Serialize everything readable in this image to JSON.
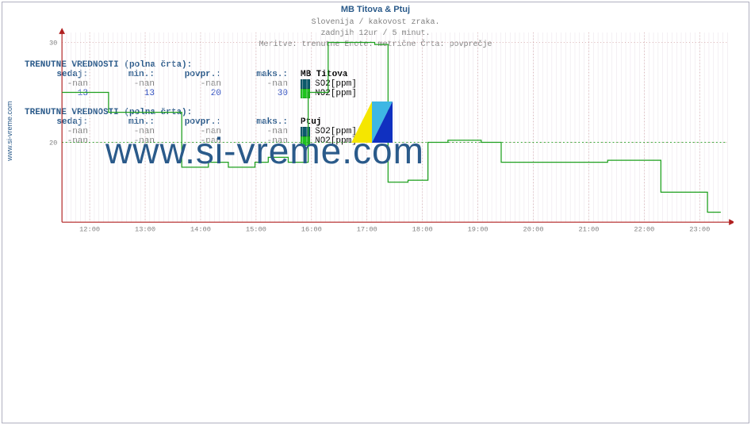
{
  "title": "MB Titova & Ptuj",
  "ylabel": "www.si-vreme.com",
  "watermark": "www.si-vreme.com",
  "chart": {
    "type": "line-step",
    "ylim": [
      12,
      31
    ],
    "yticks": [
      20,
      30
    ],
    "xlabels": [
      "12:00",
      "13:00",
      "14:00",
      "15:00",
      "16:00",
      "17:00",
      "18:00",
      "19:00",
      "20:00",
      "21:00",
      "22:00",
      "23:00"
    ],
    "grid_minor_color": "#e8e0e8",
    "grid_major_color": "#c08080",
    "axis_color": "#b02020",
    "ref_line": {
      "value": 20,
      "color": "#20a020",
      "dash": "2 3"
    },
    "series": {
      "color": "#1ea01e",
      "points": [
        [
          0.0,
          25.0
        ],
        [
          0.07,
          25.0
        ],
        [
          0.07,
          23.0
        ],
        [
          0.17,
          23.0
        ],
        [
          0.17,
          23.0
        ],
        [
          0.18,
          23.0
        ],
        [
          0.18,
          17.5
        ],
        [
          0.22,
          17.5
        ],
        [
          0.22,
          18.0
        ],
        [
          0.25,
          18.0
        ],
        [
          0.25,
          17.5
        ],
        [
          0.29,
          17.5
        ],
        [
          0.29,
          18.0
        ],
        [
          0.31,
          18.0
        ],
        [
          0.31,
          18.5
        ],
        [
          0.34,
          18.5
        ],
        [
          0.34,
          18.0
        ],
        [
          0.37,
          18.0
        ],
        [
          0.37,
          25.0
        ],
        [
          0.4,
          25.0
        ],
        [
          0.4,
          30.0
        ],
        [
          0.47,
          30.0
        ],
        [
          0.47,
          29.8
        ],
        [
          0.49,
          29.8
        ],
        [
          0.49,
          16.0
        ],
        [
          0.52,
          16.0
        ],
        [
          0.52,
          16.2
        ],
        [
          0.55,
          16.2
        ],
        [
          0.55,
          20.0
        ],
        [
          0.58,
          20.0
        ],
        [
          0.58,
          20.2
        ],
        [
          0.63,
          20.2
        ],
        [
          0.63,
          20.0
        ],
        [
          0.66,
          20.0
        ],
        [
          0.66,
          18.0
        ],
        [
          0.71,
          18.0
        ],
        [
          0.71,
          18.0
        ],
        [
          0.79,
          18.0
        ],
        [
          0.79,
          18.0
        ],
        [
          0.82,
          18.0
        ],
        [
          0.82,
          18.2
        ],
        [
          0.9,
          18.2
        ],
        [
          0.9,
          15.0
        ],
        [
          0.97,
          15.0
        ],
        [
          0.97,
          13.0
        ],
        [
          0.99,
          13.0
        ]
      ]
    },
    "footer": [
      "Slovenija / kakovost zraka.",
      "zadnjih 12ur / 5 minut.",
      "Meritve: trenutne  Enote: metrične  Črta: povprečje"
    ]
  },
  "legends": [
    {
      "header": "TRENUTNE VREDNOSTI (polna črta):",
      "columns": [
        "sedaj:",
        "min.:",
        "povpr.:",
        "maks.:"
      ],
      "station": "MB Titova",
      "rows": [
        {
          "values": [
            "-nan",
            "-nan",
            "-nan",
            "-nan"
          ],
          "swatch": "#0b5a6b",
          "label": "SO2[ppm]",
          "hilite": false
        },
        {
          "values": [
            "13",
            "13",
            "20",
            "30"
          ],
          "swatch": "#1ec41e",
          "label": "NO2[ppm]",
          "hilite": true
        }
      ]
    },
    {
      "header": "TRENUTNE VREDNOSTI (polna črta):",
      "columns": [
        "sedaj:",
        "min.:",
        "povpr.:",
        "maks.:"
      ],
      "station": "Ptuj",
      "rows": [
        {
          "values": [
            "-nan",
            "-nan",
            "-nan",
            "-nan"
          ],
          "swatch": "#0b5a6b",
          "label": "SO2[ppm]",
          "hilite": false
        },
        {
          "values": [
            "-nan",
            "-nan",
            "-nan",
            "-nan"
          ],
          "swatch": "#1ec41e",
          "label": "NO2[ppm]",
          "hilite": false
        }
      ]
    }
  ]
}
